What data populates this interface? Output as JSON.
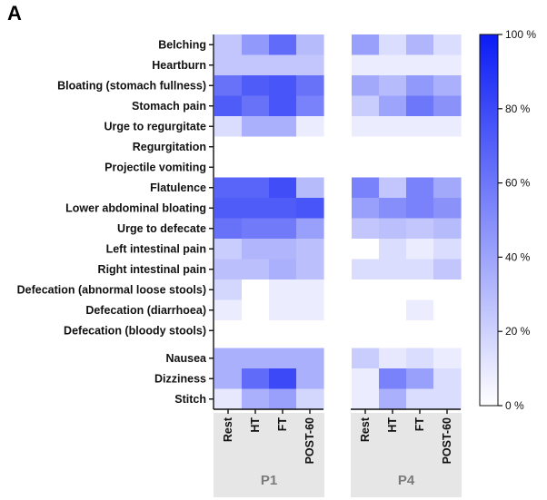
{
  "panel_label": "A",
  "colors": {
    "high": "#0b1cf5",
    "low": "#ffffff",
    "axis": "#111111",
    "group_band": "#e6e6e6",
    "group_text": "#7a7a7a"
  },
  "chart_data": {
    "type": "heatmap",
    "title": "",
    "value_unit": "%",
    "color_scale": {
      "min": 0,
      "max": 100,
      "ticks": [
        0,
        20,
        40,
        60,
        80,
        100
      ],
      "tick_labels": [
        "0 %",
        "20 %",
        "40 %",
        "60 %",
        "80 %",
        "100 %"
      ]
    },
    "rows": [
      "Belching",
      "Heartburn",
      "Bloating (stomach fullness)",
      "Stomach pain",
      "Urge to regurgitate",
      "Regurgitation",
      "Projectile vomiting",
      "Flatulence",
      "Lower abdominal bloating",
      "Urge to defecate",
      "Left intestinal pain",
      "Right intestinal pain",
      "Defecation (abnormal loose stools)",
      "Defecation (diarrhoea)",
      "Defecation (bloody stools)",
      "Nausea",
      "Dizziness",
      "Stitch"
    ],
    "columns": [
      "Rest",
      "HT",
      "FT",
      "POST-60"
    ],
    "row_gap_after": [
      14
    ],
    "panels": [
      {
        "name": "P1",
        "values": [
          [
            25,
            45,
            65,
            30
          ],
          [
            25,
            25,
            25,
            25
          ],
          [
            62,
            72,
            75,
            62
          ],
          [
            72,
            62,
            75,
            55
          ],
          [
            15,
            35,
            35,
            8
          ],
          [
            0,
            0,
            0,
            0
          ],
          [
            0,
            0,
            0,
            0
          ],
          [
            68,
            68,
            78,
            30
          ],
          [
            72,
            72,
            72,
            75
          ],
          [
            62,
            58,
            58,
            42
          ],
          [
            22,
            32,
            32,
            28
          ],
          [
            28,
            28,
            35,
            28
          ],
          [
            18,
            0,
            8,
            8
          ],
          [
            8,
            0,
            8,
            8
          ],
          [
            0,
            0,
            0,
            0
          ],
          [
            35,
            35,
            35,
            35
          ],
          [
            35,
            65,
            80,
            35
          ],
          [
            10,
            35,
            42,
            18
          ]
        ]
      },
      {
        "name": "P4",
        "values": [
          [
            42,
            15,
            32,
            15
          ],
          [
            8,
            8,
            8,
            8
          ],
          [
            38,
            30,
            45,
            35
          ],
          [
            22,
            40,
            60,
            48
          ],
          [
            8,
            8,
            8,
            8
          ],
          [
            0,
            0,
            0,
            0
          ],
          [
            0,
            0,
            0,
            0
          ],
          [
            55,
            25,
            55,
            38
          ],
          [
            42,
            50,
            55,
            48
          ],
          [
            25,
            28,
            25,
            30
          ],
          [
            0,
            15,
            8,
            15
          ],
          [
            15,
            15,
            15,
            25
          ],
          [
            0,
            0,
            0,
            0
          ],
          [
            0,
            0,
            8,
            0
          ],
          [
            0,
            0,
            0,
            0
          ],
          [
            22,
            10,
            15,
            8
          ],
          [
            8,
            55,
            42,
            15
          ],
          [
            8,
            35,
            15,
            15
          ]
        ]
      }
    ]
  }
}
